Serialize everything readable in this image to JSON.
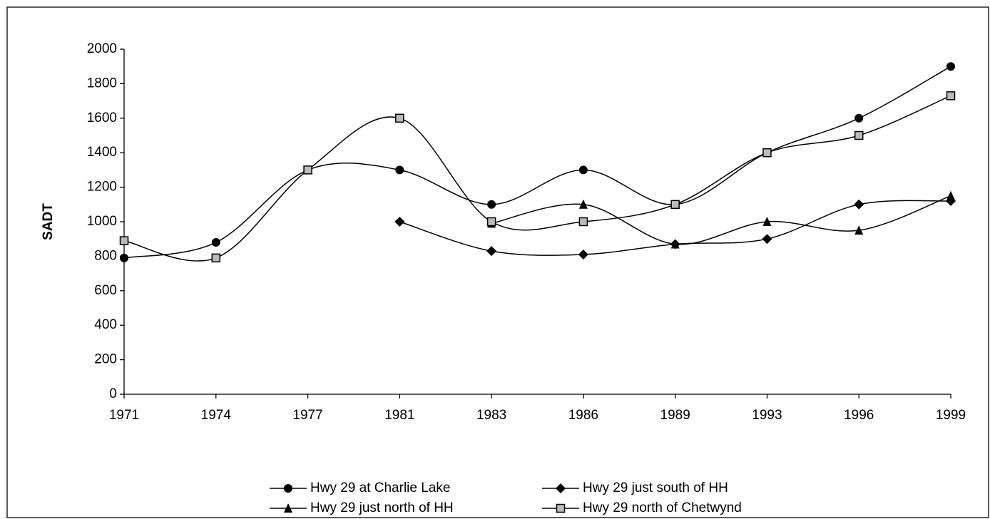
{
  "chart_data": {
    "type": "line",
    "y_label": "SADT",
    "categories": [
      "1971",
      "1974",
      "1977",
      "1981",
      "1983",
      "1986",
      "1989",
      "1993",
      "1996",
      "1999"
    ],
    "ylim": [
      0,
      2000
    ],
    "yticks": [
      0,
      200,
      400,
      600,
      800,
      1000,
      1200,
      1400,
      1600,
      1800,
      2000
    ],
    "smooth": true,
    "series": [
      {
        "name": "Hwy 29 at Charlie Lake",
        "color": "#000000",
        "marker": "circle",
        "values": [
          790,
          880,
          1300,
          1300,
          1100,
          1300,
          1100,
          1400,
          1600,
          1900
        ]
      },
      {
        "name": "Hwy 29 just south of HH",
        "color": "#000000",
        "marker": "diamond",
        "values": [
          null,
          null,
          null,
          1000,
          830,
          810,
          870,
          900,
          1100,
          1120
        ]
      },
      {
        "name": "Hwy 29 just north of HH",
        "color": "#000000",
        "marker": "triangle",
        "values": [
          null,
          null,
          null,
          null,
          990,
          1100,
          870,
          1000,
          950,
          1150
        ]
      },
      {
        "name": "Hwy 29 north of Chetwynd",
        "color": "#000000",
        "marker": "square",
        "values": [
          890,
          790,
          1300,
          1600,
          1000,
          1000,
          1100,
          1400,
          1500,
          1730
        ]
      }
    ]
  }
}
